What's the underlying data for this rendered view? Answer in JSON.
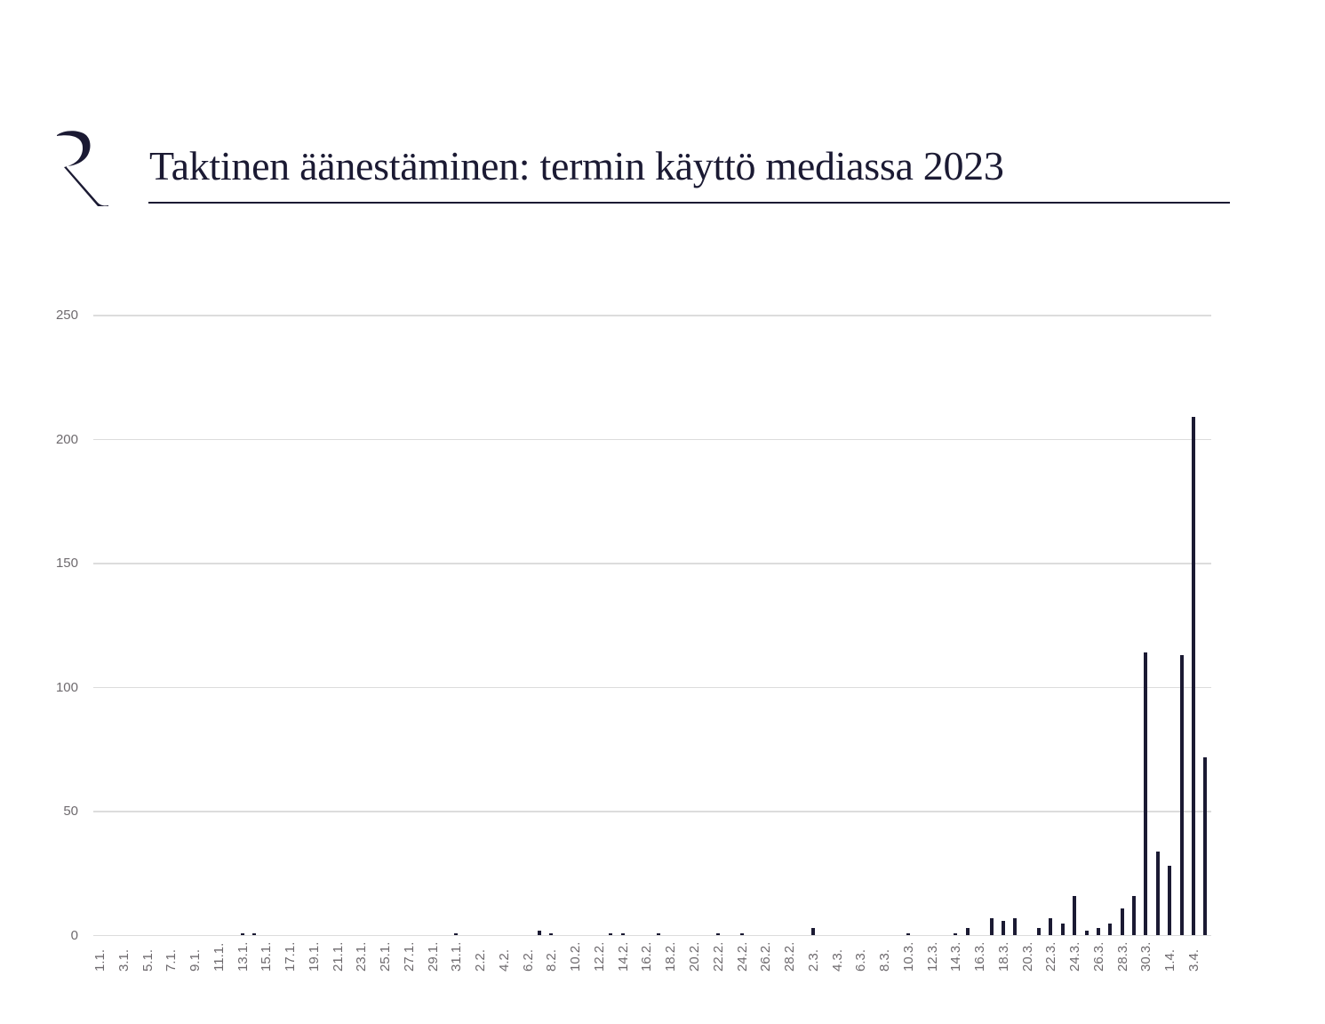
{
  "header": {
    "logo_letter": "R",
    "title": "Taktinen äänestäminen: termin käyttö mediassa 2023"
  },
  "colors": {
    "bar": "#1b1a33",
    "grid": "#dcdcdc",
    "axis_text": "#6e6a6e",
    "title": "#1b1a33"
  },
  "chart_data": {
    "type": "bar",
    "title": "Taktinen äänestäminen: termin käyttö mediassa 2023",
    "xlabel": "",
    "ylabel": "",
    "ylim": [
      0,
      250
    ],
    "yticks": [
      0,
      50,
      100,
      150,
      200,
      250
    ],
    "grid": true,
    "legend": null,
    "x_tick_labels": [
      "1.1.",
      "3.1.",
      "5.1.",
      "7.1.",
      "9.1.",
      "11.1.",
      "13.1.",
      "15.1.",
      "17.1.",
      "19.1.",
      "21.1.",
      "23.1.",
      "25.1.",
      "27.1.",
      "29.1.",
      "31.1.",
      "2.2.",
      "4.2.",
      "6.2.",
      "8.2.",
      "10.2.",
      "12.2.",
      "14.2.",
      "16.2.",
      "18.2.",
      "20.2.",
      "22.2.",
      "24.2.",
      "26.2.",
      "28.2.",
      "2.3.",
      "4.3.",
      "6.3.",
      "8.3.",
      "10.3.",
      "12.3.",
      "14.3.",
      "16.3.",
      "18.3.",
      "20.3.",
      "22.3.",
      "24.3.",
      "26.3.",
      "28.3.",
      "30.3.",
      "1.4.",
      "3.4."
    ],
    "categories": [
      "1.1.",
      "2.1.",
      "3.1.",
      "4.1.",
      "5.1.",
      "6.1.",
      "7.1.",
      "8.1.",
      "9.1.",
      "10.1.",
      "11.1.",
      "12.1.",
      "13.1.",
      "14.1.",
      "15.1.",
      "16.1.",
      "17.1.",
      "18.1.",
      "19.1.",
      "20.1.",
      "21.1.",
      "22.1.",
      "23.1.",
      "24.1.",
      "25.1.",
      "26.1.",
      "27.1.",
      "28.1.",
      "29.1.",
      "30.1.",
      "31.1.",
      "1.2.",
      "2.2.",
      "3.2.",
      "4.2.",
      "5.2.",
      "6.2.",
      "7.2.",
      "8.2.",
      "9.2.",
      "10.2.",
      "11.2.",
      "12.2.",
      "13.2.",
      "14.2.",
      "15.2.",
      "16.2.",
      "17.2.",
      "18.2.",
      "19.2.",
      "20.2.",
      "21.2.",
      "22.2.",
      "23.2.",
      "24.2.",
      "25.2.",
      "26.2.",
      "27.2.",
      "28.2.",
      "1.3.",
      "2.3.",
      "3.3.",
      "4.3.",
      "5.3.",
      "6.3.",
      "7.3.",
      "8.3.",
      "9.3.",
      "10.3.",
      "11.3.",
      "12.3.",
      "13.3.",
      "14.3.",
      "15.3.",
      "16.3.",
      "17.3.",
      "18.3.",
      "19.3.",
      "20.3.",
      "21.3.",
      "22.3.",
      "23.3.",
      "24.3.",
      "25.3.",
      "26.3.",
      "27.3.",
      "28.3.",
      "29.3.",
      "30.3.",
      "31.3.",
      "1.4.",
      "2.4.",
      "3.4.",
      "4.4."
    ],
    "values": [
      0,
      0,
      0,
      0,
      0,
      0,
      0,
      0,
      0,
      0,
      0,
      0,
      1,
      1,
      0,
      0,
      0,
      0,
      0,
      0,
      0,
      0,
      0,
      0,
      0,
      0,
      0,
      0,
      0,
      0,
      1,
      0,
      0,
      0,
      0,
      0,
      0,
      2,
      1,
      0,
      0,
      0,
      0,
      1,
      1,
      0,
      0,
      1,
      0,
      0,
      0,
      0,
      1,
      0,
      1,
      0,
      0,
      0,
      0,
      0,
      3,
      0,
      0,
      0,
      0,
      0,
      0,
      0,
      1,
      0,
      0,
      0,
      1,
      3,
      0,
      7,
      6,
      7,
      0,
      3,
      7,
      5,
      16,
      2,
      3,
      5,
      11,
      16,
      114,
      34,
      28,
      113,
      209,
      72
    ]
  }
}
